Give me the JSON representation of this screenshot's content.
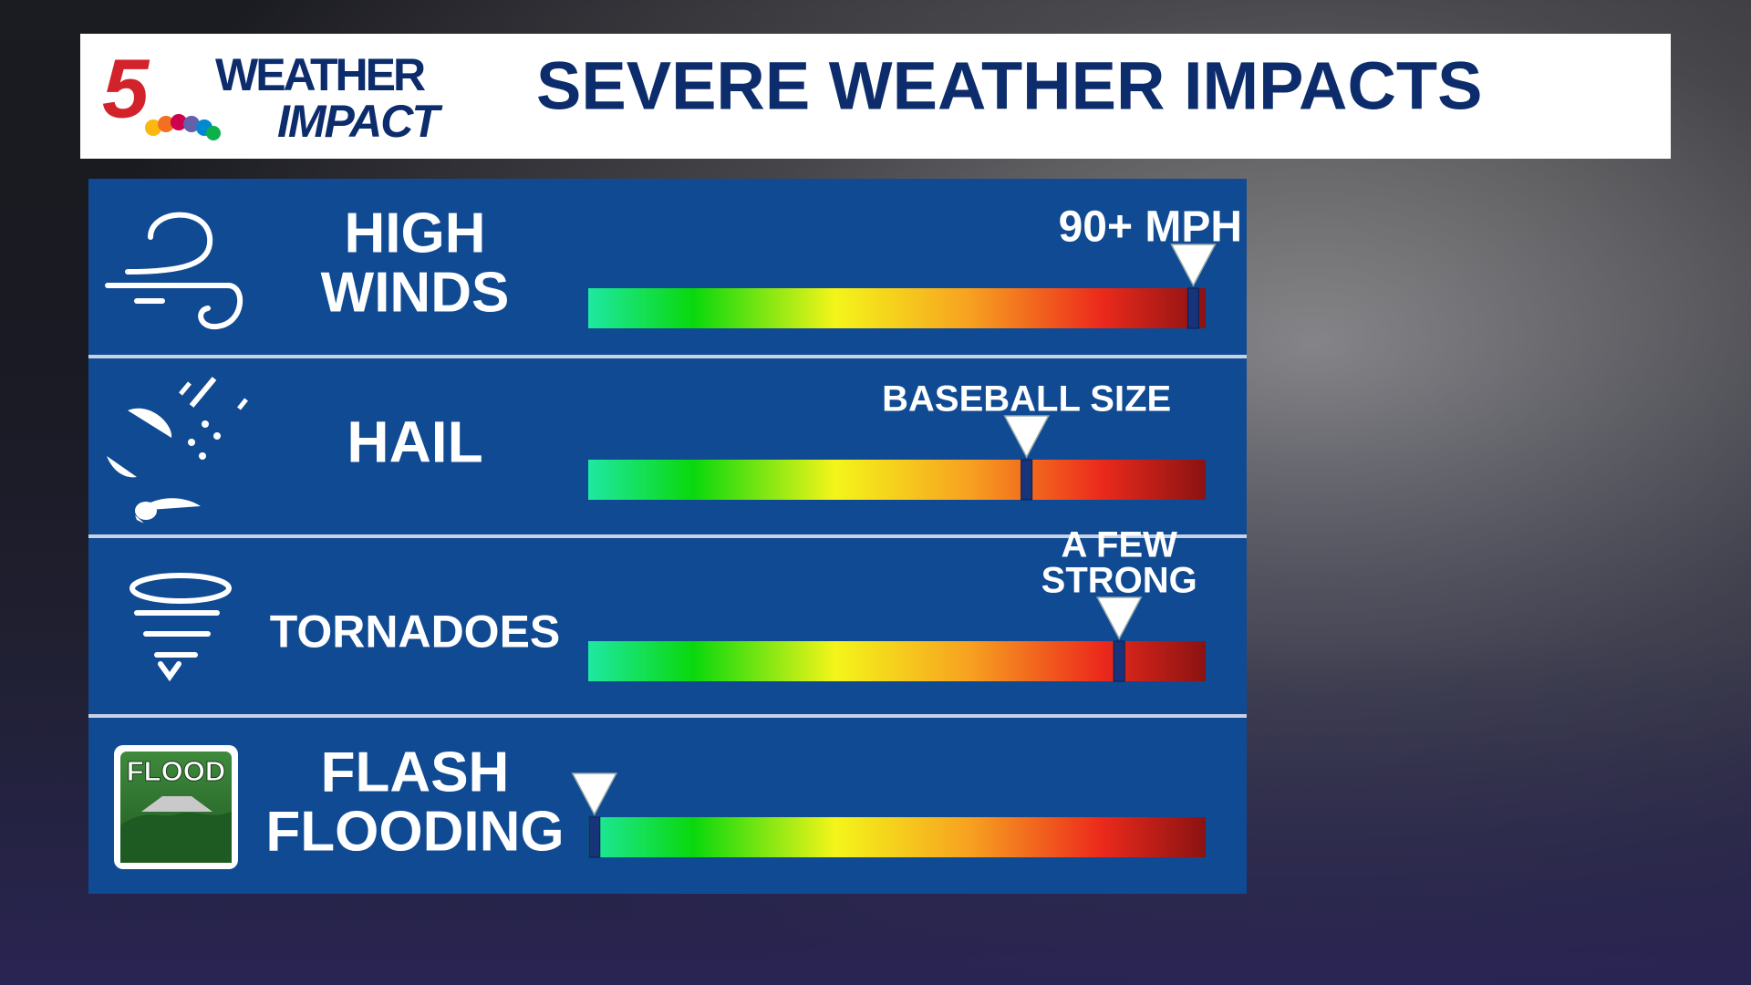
{
  "header": {
    "logo_number": "5",
    "logo_top": "WEATHER",
    "logo_bottom": "IMPACT",
    "title": "SEVERE WEATHER IMPACTS"
  },
  "scale": [
    0,
    100
  ],
  "impacts": [
    {
      "label": [
        "HIGH",
        "WINDS"
      ],
      "callout": [
        "90+ MPH"
      ],
      "level": 98
    },
    {
      "label": [
        "HAIL"
      ],
      "callout": [
        "BASEBALL SIZE"
      ],
      "level": 71
    },
    {
      "label": [
        "TORNADOES"
      ],
      "callout": [
        "A FEW",
        "STRONG"
      ],
      "level": 86
    },
    {
      "label": [
        "FLASH",
        "FLOODING"
      ],
      "icon_text": "FLOOD",
      "level": 1
    }
  ]
}
